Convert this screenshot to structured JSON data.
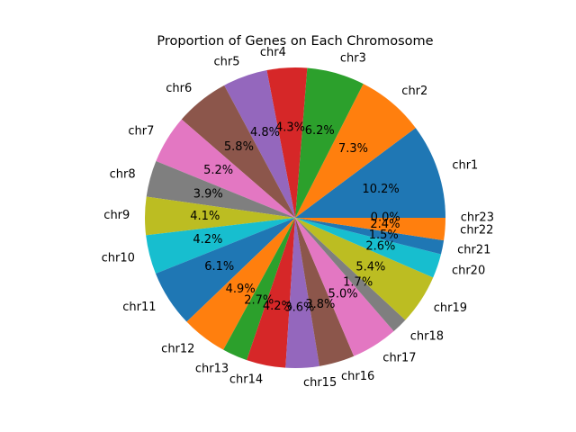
{
  "chart_data": {
    "type": "pie",
    "title": "Proportion of Genes on Each Chromosome",
    "start_angle_deg": 0,
    "direction": "counterclockwise",
    "slices": [
      {
        "label": "chr1",
        "value": 10.2,
        "pct_label": "10.2%",
        "color": "#1f77b4"
      },
      {
        "label": "chr2",
        "value": 7.3,
        "pct_label": "7.3%",
        "color": "#ff7f0e"
      },
      {
        "label": "chr3",
        "value": 6.2,
        "pct_label": "6.2%",
        "color": "#2ca02c"
      },
      {
        "label": "chr4",
        "value": 4.3,
        "pct_label": "4.3%",
        "color": "#d62728"
      },
      {
        "label": "chr5",
        "value": 4.8,
        "pct_label": "4.8%",
        "color": "#9467bd"
      },
      {
        "label": "chr6",
        "value": 5.8,
        "pct_label": "5.8%",
        "color": "#8c564b"
      },
      {
        "label": "chr7",
        "value": 5.2,
        "pct_label": "5.2%",
        "color": "#e377c2"
      },
      {
        "label": "chr8",
        "value": 3.9,
        "pct_label": "3.9%",
        "color": "#7f7f7f"
      },
      {
        "label": "chr9",
        "value": 4.1,
        "pct_label": "4.1%",
        "color": "#bcbd22"
      },
      {
        "label": "chr10",
        "value": 4.2,
        "pct_label": "4.2%",
        "color": "#17becf"
      },
      {
        "label": "chr11",
        "value": 6.1,
        "pct_label": "6.1%",
        "color": "#1f77b4"
      },
      {
        "label": "chr12",
        "value": 4.9,
        "pct_label": "4.9%",
        "color": "#ff7f0e"
      },
      {
        "label": "chr13",
        "value": 2.7,
        "pct_label": "2.7%",
        "color": "#2ca02c"
      },
      {
        "label": "chr14",
        "value": 4.2,
        "pct_label": "4.2%",
        "color": "#d62728"
      },
      {
        "label": "chr15",
        "value": 3.6,
        "pct_label": "3.6%",
        "color": "#9467bd"
      },
      {
        "label": "chr16",
        "value": 3.8,
        "pct_label": "3.8%",
        "color": "#8c564b"
      },
      {
        "label": "chr17",
        "value": 5.0,
        "pct_label": "5.0%",
        "color": "#e377c2"
      },
      {
        "label": "chr18",
        "value": 1.7,
        "pct_label": "1.7%",
        "color": "#7f7f7f"
      },
      {
        "label": "chr19",
        "value": 5.4,
        "pct_label": "5.4%",
        "color": "#bcbd22"
      },
      {
        "label": "chr20",
        "value": 2.6,
        "pct_label": "2.6%",
        "color": "#17becf"
      },
      {
        "label": "chr21",
        "value": 1.5,
        "pct_label": "1.5%",
        "color": "#1f77b4"
      },
      {
        "label": "chr22",
        "value": 2.4,
        "pct_label": "2.4%",
        "color": "#ff7f0e"
      },
      {
        "label": "chr23",
        "value": 0.0,
        "pct_label": "0.0%",
        "color": "#2ca02c"
      }
    ]
  }
}
